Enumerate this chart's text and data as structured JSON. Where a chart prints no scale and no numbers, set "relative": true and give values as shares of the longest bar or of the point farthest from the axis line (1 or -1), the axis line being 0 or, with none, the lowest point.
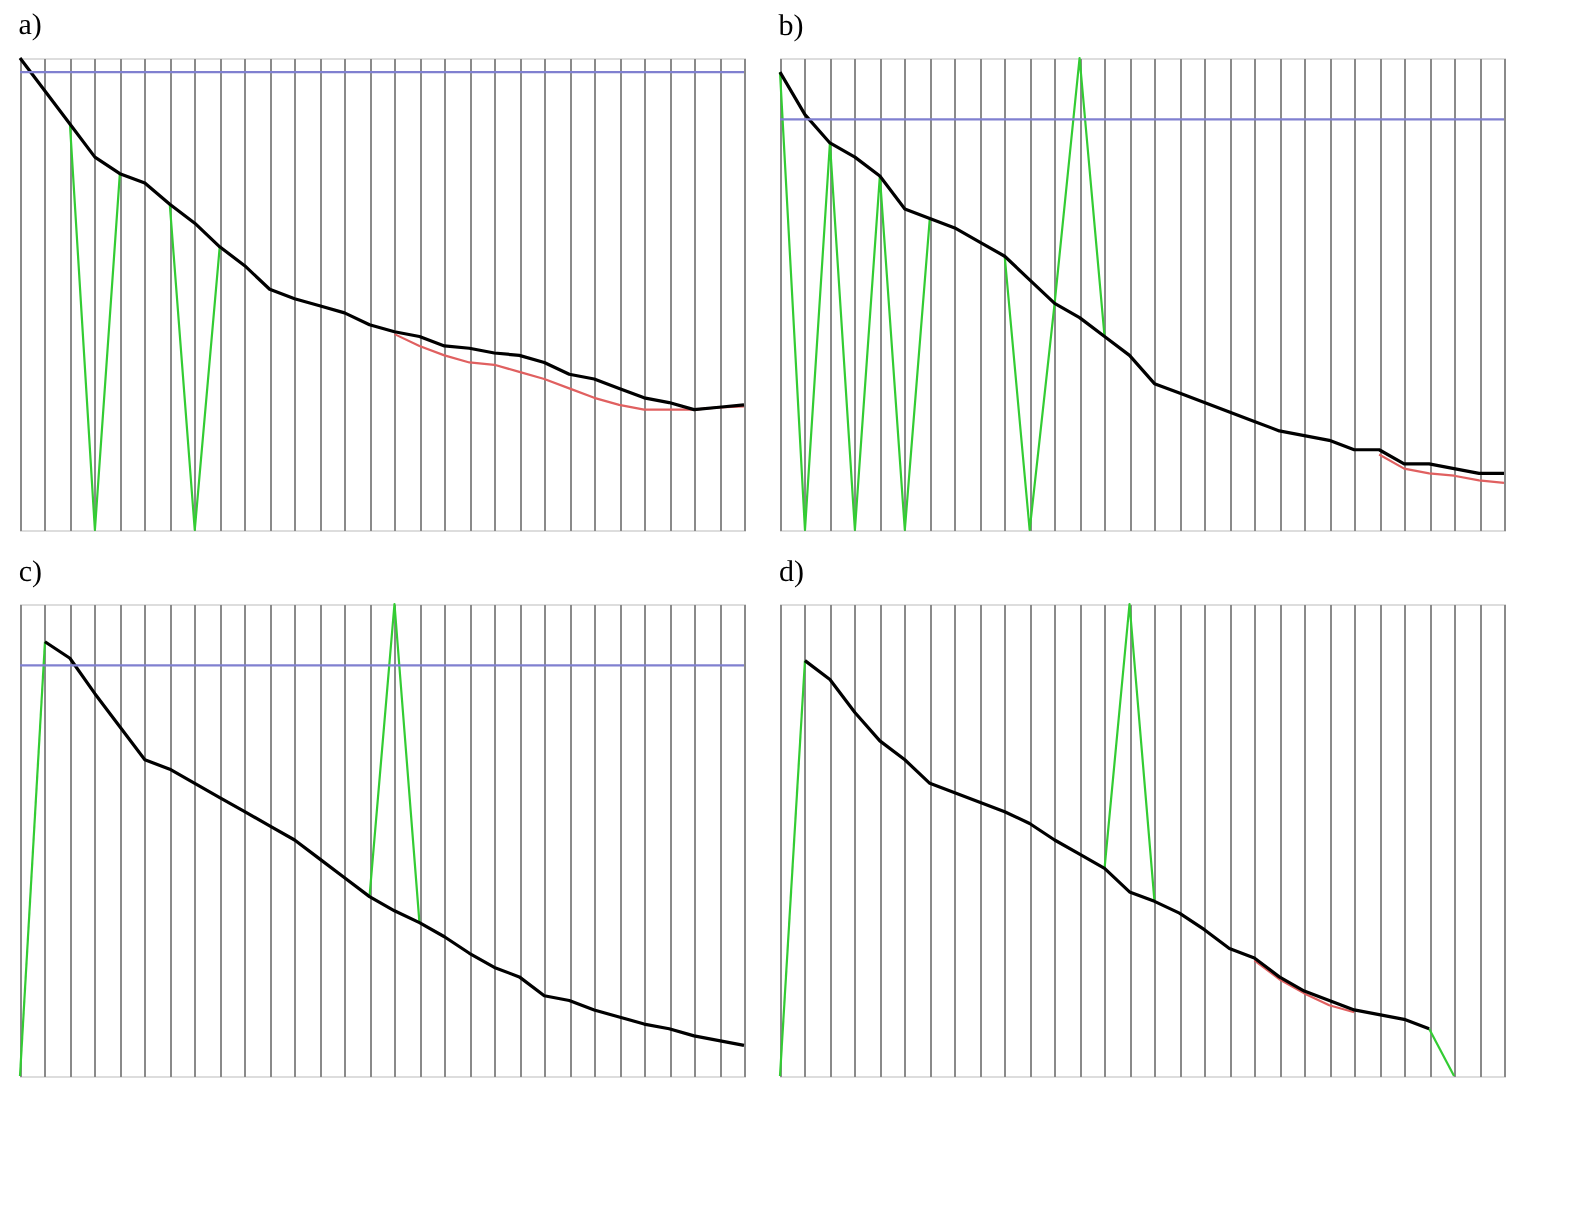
{
  "chart_data": [
    {
      "type": "line",
      "title": "a)",
      "relative": true,
      "grid": "x",
      "tick_labels": false,
      "categories": [
        null,
        null,
        null,
        null,
        null,
        null,
        null,
        null,
        null,
        null,
        null,
        null,
        null,
        null,
        null,
        null,
        null,
        null,
        null,
        null,
        null,
        null,
        null,
        null,
        null,
        null,
        null,
        null,
        null,
        null
      ],
      "ref_lines": [
        {
          "axis": "y",
          "value": 0.97,
          "color": "#8080d0"
        }
      ],
      "series": [
        {
          "color": "#33cc33",
          "values": [
            null,
            null,
            0.86,
            0,
            0.755,
            null,
            0.69,
            0,
            0.6,
            null,
            null,
            null,
            null,
            null,
            null,
            null,
            null,
            null,
            null,
            null,
            null,
            null,
            null,
            null,
            null,
            null,
            null,
            null,
            null,
            null
          ]
        },
        {
          "color": "#e06060",
          "values": [
            null,
            null,
            null,
            null,
            null,
            null,
            null,
            null,
            null,
            null,
            null,
            null,
            null,
            null,
            null,
            0.415,
            0.39,
            0.37,
            0.355,
            0.35,
            0.335,
            0.32,
            0.3,
            0.28,
            0.265,
            0.255,
            0.255,
            0.255,
            0.26,
            0.262
          ]
        },
        {
          "color": "#000000",
          "values": [
            1.0,
            0.93,
            0.86,
            0.79,
            0.755,
            0.735,
            0.69,
            0.65,
            0.6,
            0.56,
            0.51,
            0.49,
            0.475,
            0.46,
            0.435,
            0.42,
            0.41,
            0.39,
            0.385,
            0.375,
            0.37,
            0.355,
            0.33,
            0.32,
            0.3,
            0.28,
            0.27,
            0.255,
            0.26,
            0.265
          ]
        }
      ]
    },
    {
      "type": "line",
      "title": "b)",
      "relative": true,
      "grid": "x",
      "tick_labels": false,
      "categories": [
        null,
        null,
        null,
        null,
        null,
        null,
        null,
        null,
        null,
        null,
        null,
        null,
        null,
        null,
        null,
        null,
        null,
        null,
        null,
        null,
        null,
        null,
        null,
        null,
        null,
        null,
        null,
        null,
        null,
        null
      ],
      "ref_lines": [
        {
          "axis": "y",
          "value": 0.87,
          "color": "#8080d0"
        }
      ],
      "series": [
        {
          "color": "#33cc33",
          "values": [
            0.97,
            0,
            0.82,
            0,
            0.75,
            0,
            0.66,
            null,
            null,
            0.58,
            0,
            0.48,
            1.0,
            0.41,
            null,
            null,
            null,
            null,
            null,
            null,
            null,
            null,
            null,
            null,
            null,
            null,
            null,
            null,
            null,
            null
          ]
        },
        {
          "color": "#e06060",
          "values": [
            null,
            null,
            null,
            null,
            null,
            null,
            null,
            null,
            null,
            null,
            null,
            null,
            null,
            null,
            null,
            null,
            null,
            null,
            null,
            null,
            null,
            null,
            null,
            null,
            0.16,
            0.13,
            0.12,
            0.115,
            0.105,
            0.1
          ]
        },
        {
          "color": "#000000",
          "values": [
            0.97,
            0.88,
            0.82,
            0.79,
            0.75,
            0.68,
            0.66,
            0.64,
            0.61,
            0.58,
            0.53,
            0.48,
            0.45,
            0.41,
            0.37,
            0.31,
            0.29,
            0.27,
            0.25,
            0.23,
            0.21,
            0.2,
            0.19,
            0.17,
            0.17,
            0.14,
            0.14,
            0.13,
            0.12,
            0.12
          ]
        }
      ]
    },
    {
      "type": "line",
      "title": "c)",
      "relative": true,
      "grid": "x",
      "tick_labels": false,
      "categories": [
        null,
        null,
        null,
        null,
        null,
        null,
        null,
        null,
        null,
        null,
        null,
        null,
        null,
        null,
        null,
        null,
        null,
        null,
        null,
        null,
        null,
        null,
        null,
        null,
        null,
        null,
        null,
        null,
        null,
        null
      ],
      "ref_lines": [
        {
          "axis": "y",
          "value": 0.87,
          "color": "#8080d0"
        }
      ],
      "series": [
        {
          "color": "#33cc33",
          "values": [
            0,
            0.92,
            null,
            null,
            null,
            null,
            null,
            null,
            null,
            null,
            null,
            null,
            null,
            null,
            0.38,
            1.0,
            0.325,
            null,
            null,
            null,
            null,
            null,
            null,
            null,
            null,
            null,
            null,
            null,
            null,
            null
          ]
        },
        {
          "color": "#000000",
          "values": [
            null,
            0.92,
            0.885,
            0.81,
            0.74,
            0.67,
            0.65,
            0.62,
            0.59,
            0.56,
            0.53,
            0.5,
            0.46,
            0.42,
            0.38,
            0.35,
            0.325,
            0.295,
            0.26,
            0.23,
            0.21,
            0.17,
            0.16,
            0.14,
            0.125,
            0.11,
            0.1,
            0.085,
            0.075,
            0.065
          ]
        }
      ]
    },
    {
      "type": "line",
      "title": "d)",
      "relative": true,
      "grid": "x",
      "tick_labels": false,
      "categories": [
        null,
        null,
        null,
        null,
        null,
        null,
        null,
        null,
        null,
        null,
        null,
        null,
        null,
        null,
        null,
        null,
        null,
        null,
        null,
        null,
        null,
        null,
        null,
        null,
        null,
        null,
        null,
        null,
        null,
        null
      ],
      "series": [
        {
          "color": "#33cc33",
          "values": [
            0,
            0.88,
            null,
            null,
            null,
            null,
            null,
            null,
            null,
            null,
            null,
            null,
            null,
            0.44,
            1.0,
            0.37,
            null,
            null,
            null,
            null,
            null,
            null,
            null,
            null,
            null,
            null,
            0.1,
            0,
            null,
            null
          ]
        },
        {
          "color": "#e06060",
          "values": [
            null,
            null,
            null,
            null,
            null,
            null,
            null,
            null,
            null,
            null,
            null,
            null,
            null,
            null,
            null,
            null,
            null,
            null,
            null,
            0.245,
            0.205,
            0.175,
            0.15,
            0.135,
            null,
            null,
            null,
            null,
            null,
            null
          ]
        },
        {
          "color": "#000000",
          "values": [
            null,
            0.88,
            0.84,
            0.77,
            0.71,
            0.67,
            0.62,
            0.6,
            0.58,
            0.56,
            0.535,
            0.5,
            0.47,
            0.44,
            0.39,
            0.37,
            0.345,
            0.31,
            0.27,
            0.25,
            0.21,
            0.18,
            0.16,
            0.14,
            0.13,
            0.12,
            0.1,
            null,
            null,
            null
          ]
        }
      ]
    }
  ]
}
